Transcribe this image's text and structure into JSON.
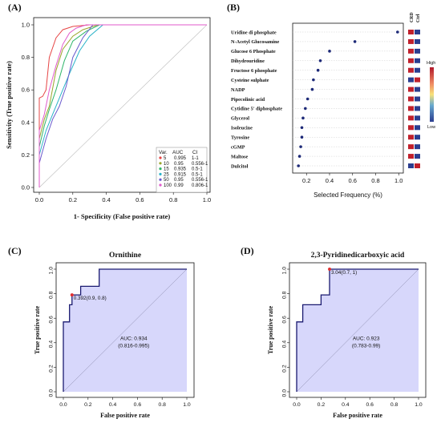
{
  "panels": {
    "a": {
      "label": "(A)"
    },
    "b": {
      "label": "(B)"
    },
    "c": {
      "label": "(C)"
    },
    "d": {
      "label": "(D)"
    }
  },
  "chart_data": [
    {
      "id": "A",
      "type": "line",
      "xlabel": "1- Specificity (False positive rate)",
      "ylabel": "Sensitivity (True positive rate)",
      "xlim": [
        0,
        1.0
      ],
      "ylim": [
        0,
        1.0
      ],
      "xticks": [
        "0.0",
        "0.2",
        "0.4",
        "0.6",
        "0.8",
        "1.0"
      ],
      "yticks": [
        "0.0",
        "0.2",
        "0.4",
        "0.6",
        "0.8",
        "1.0"
      ],
      "legend_headers": [
        "Var.",
        "AUC",
        "CI"
      ],
      "legend_position": "bottom-right",
      "series": [
        {
          "name": "5",
          "auc": "0.995",
          "ci": "1-1",
          "color": "#e64545",
          "x": [
            0,
            0,
            0.02,
            0.04,
            0.06,
            0.1,
            0.14,
            0.2,
            0.3,
            1.0
          ],
          "y": [
            0,
            0.55,
            0.56,
            0.6,
            0.8,
            0.92,
            0.97,
            0.99,
            1.0,
            1.0
          ]
        },
        {
          "name": "10",
          "auc": "0.95",
          "ci": "0.556-1",
          "color": "#9aa52a",
          "x": [
            0,
            0,
            0.03,
            0.06,
            0.1,
            0.14,
            0.2,
            0.26,
            0.35,
            1.0
          ],
          "y": [
            0,
            0.3,
            0.42,
            0.5,
            0.72,
            0.85,
            0.93,
            0.97,
            1.0,
            1.0
          ]
        },
        {
          "name": "15",
          "auc": "0.935",
          "ci": "0.5-1",
          "color": "#2fb56a",
          "x": [
            0,
            0,
            0.03,
            0.06,
            0.1,
            0.15,
            0.2,
            0.28,
            0.36,
            1.0
          ],
          "y": [
            0,
            0.25,
            0.38,
            0.48,
            0.6,
            0.78,
            0.9,
            0.96,
            1.0,
            1.0
          ]
        },
        {
          "name": "25",
          "auc": "0.915",
          "ci": "0.5-1",
          "color": "#2ab3c8",
          "x": [
            0,
            0,
            0.04,
            0.08,
            0.12,
            0.18,
            0.24,
            0.3,
            0.38,
            1.0
          ],
          "y": [
            0,
            0.2,
            0.35,
            0.45,
            0.55,
            0.7,
            0.84,
            0.93,
            1.0,
            1.0
          ]
        },
        {
          "name": "50",
          "auc": "0.95",
          "ci": "0.556-1",
          "color": "#6a5acd",
          "x": [
            0,
            0,
            0.04,
            0.08,
            0.12,
            0.16,
            0.2,
            0.26,
            0.32,
            1.0
          ],
          "y": [
            0,
            0.15,
            0.3,
            0.42,
            0.5,
            0.62,
            0.8,
            0.92,
            1.0,
            1.0
          ]
        },
        {
          "name": "100",
          "auc": "0.99",
          "ci": "0.806-1",
          "color": "#e05acb",
          "x": [
            0,
            0,
            0.03,
            0.06,
            0.1,
            0.14,
            0.18,
            0.22,
            0.28,
            1.0
          ],
          "y": [
            0,
            0.35,
            0.45,
            0.6,
            0.75,
            0.88,
            0.95,
            0.98,
            1.0,
            1.0
          ]
        }
      ]
    },
    {
      "id": "B",
      "type": "scatter",
      "xlabel": "Selected Frequency (%)",
      "xticks": [
        "0.2",
        "0.4",
        "0.6",
        "0.8",
        "1.0"
      ],
      "xlim": [
        0.08,
        1.04
      ],
      "column_headers": [
        "CRD",
        "Ctrl"
      ],
      "colorbar_high": "High",
      "colorbar_low": "Low",
      "items": [
        {
          "name": "Uridine di phosphate",
          "value": 0.99,
          "crd": "#c0202c",
          "ctrl": "#2b3d8f"
        },
        {
          "name": "N-Acetyl Glucosamine",
          "value": 0.62,
          "crd": "#c0202c",
          "ctrl": "#2b3d8f"
        },
        {
          "name": "Glucose 6 Phosphate",
          "value": 0.4,
          "crd": "#c0202c",
          "ctrl": "#2b3d8f"
        },
        {
          "name": "Dihydrouridine",
          "value": 0.32,
          "crd": "#c0202c",
          "ctrl": "#2b3d8f"
        },
        {
          "name": "Fructose 6 phosphate",
          "value": 0.3,
          "crd": "#c0202c",
          "ctrl": "#2b3d8f"
        },
        {
          "name": "Cysteine sulphate",
          "value": 0.26,
          "crd": "#2b3d8f",
          "ctrl": "#c0202c"
        },
        {
          "name": "NADP",
          "value": 0.25,
          "crd": "#c0202c",
          "ctrl": "#2b3d8f"
        },
        {
          "name": "Pipecolinic acid",
          "value": 0.21,
          "crd": "#c0202c",
          "ctrl": "#2b3d8f"
        },
        {
          "name": "Cytidine 5' diphosphate",
          "value": 0.19,
          "crd": "#c0202c",
          "ctrl": "#2b3d8f"
        },
        {
          "name": "Glycerol",
          "value": 0.17,
          "crd": "#c0202c",
          "ctrl": "#2b3d8f"
        },
        {
          "name": "Isoleucine",
          "value": 0.16,
          "crd": "#c0202c",
          "ctrl": "#2b3d8f"
        },
        {
          "name": "Tyrosine",
          "value": 0.16,
          "crd": "#c0202c",
          "ctrl": "#2b3d8f"
        },
        {
          "name": "cGMP",
          "value": 0.15,
          "crd": "#c0202c",
          "ctrl": "#2b3d8f"
        },
        {
          "name": "Maltose",
          "value": 0.14,
          "crd": "#c0202c",
          "ctrl": "#2b3d8f"
        },
        {
          "name": "Dulcitol",
          "value": 0.13,
          "crd": "#2b3d8f",
          "ctrl": "#c0202c"
        }
      ]
    },
    {
      "id": "C",
      "type": "line",
      "title": "Ornithine",
      "xlabel": "False positive rate",
      "ylabel": "True positive rate",
      "xlim": [
        0,
        1.0
      ],
      "ylim": [
        0,
        1.0
      ],
      "xticks": [
        "0.0",
        "0.2",
        "0.4",
        "0.6",
        "0.8",
        "1.0"
      ],
      "yticks": [
        "0.0",
        "0.2",
        "0.4",
        "0.6",
        "0.8",
        "1.0"
      ],
      "x": [
        0,
        0,
        0.05,
        0.05,
        0.07,
        0.07,
        0.14,
        0.14,
        0.21,
        0.21,
        0.29,
        0.29,
        1.0
      ],
      "y": [
        0,
        0.57,
        0.57,
        0.71,
        0.71,
        0.79,
        0.79,
        0.86,
        0.86,
        0.86,
        0.86,
        1.0,
        1.0
      ],
      "cutoff": {
        "x": 0.07,
        "y": 0.79,
        "label": "0.392(0.9, 0.8)"
      },
      "auc_label": "AUC: 0.934",
      "ci_label": "(0.816-0.995)"
    },
    {
      "id": "D",
      "type": "line",
      "title": "2,3-Pyridinedicarboxyic acid",
      "xlabel": "False positive rate",
      "ylabel": "True positive rate",
      "xlim": [
        0,
        1.0
      ],
      "ylim": [
        0,
        1.0
      ],
      "xticks": [
        "0.0",
        "0.2",
        "0.4",
        "0.6",
        "0.8",
        "1.0"
      ],
      "yticks": [
        "0.0",
        "0.2",
        "0.4",
        "0.6",
        "0.8",
        "1.0"
      ],
      "x": [
        0,
        0,
        0.05,
        0.05,
        0.07,
        0.07,
        0.2,
        0.2,
        0.27,
        0.27,
        1.0
      ],
      "y": [
        0,
        0.57,
        0.57,
        0.71,
        0.71,
        0.71,
        0.71,
        0.79,
        0.79,
        1.0,
        1.0
      ],
      "cutoff": {
        "x": 0.27,
        "y": 1.0,
        "label": "3.04(0.7, 1)"
      },
      "auc_label": "AUC: 0.923",
      "ci_label": "(0.783-0.99)"
    }
  ]
}
